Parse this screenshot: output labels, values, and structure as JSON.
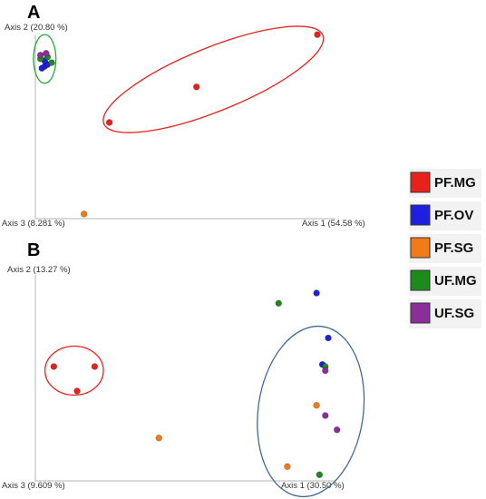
{
  "chart_data": [
    {
      "type": "scatter",
      "panel_label": "A",
      "x_axis_label": "Axis 1 (54.58 %)",
      "y_axis_label": "Axis 2 (20.80 %)",
      "z_axis_label": "Axis 3 (8.281 %)",
      "xlim": [
        0,
        1
      ],
      "ylim": [
        0,
        1
      ],
      "series": [
        {
          "group": "PF.MG",
          "points": [
            [
              1.0,
              0.98
            ],
            [
              0.57,
              0.7
            ],
            [
              0.26,
              0.51
            ]
          ]
        },
        {
          "group": "PF.OV",
          "points": [
            [
              0.02,
              0.8
            ],
            [
              0.03,
              0.81
            ],
            [
              0.04,
              0.82
            ],
            [
              0.03,
              0.84
            ]
          ]
        },
        {
          "group": "PF.SG",
          "points": [
            [
              0.17,
              0.02
            ]
          ]
        },
        {
          "group": "UF.MG",
          "points": [
            [
              0.04,
              0.86
            ],
            [
              0.055,
              0.83
            ],
            [
              0.015,
              0.85
            ]
          ]
        },
        {
          "group": "UF.SG",
          "points": [
            [
              0.015,
              0.87
            ],
            [
              0.035,
              0.88
            ]
          ]
        }
      ],
      "ellipses": [
        {
          "color_group": "UF.MG",
          "cx": 0.03,
          "cy": 0.85,
          "rx": 0.04,
          "ry": 0.13
        },
        {
          "color_group": "PF.MG",
          "cx": 0.63,
          "cy": 0.74,
          "rx": 0.42,
          "ry": 0.17,
          "angle": -22
        }
      ]
    },
    {
      "type": "scatter",
      "panel_label": "B",
      "x_axis_label": "Axis 1 (30.50 %)",
      "y_axis_label": "Axis 2 (13.27 %)",
      "z_axis_label": "Axis 3 (9.609 %)",
      "xlim": [
        0,
        1
      ],
      "ylim": [
        0,
        1
      ],
      "series": [
        {
          "group": "PF.MG",
          "points": [
            [
              0.06,
              0.56
            ],
            [
              0.2,
              0.56
            ],
            [
              0.14,
              0.44
            ]
          ]
        },
        {
          "group": "PF.OV",
          "points": [
            [
              0.96,
              0.92
            ],
            [
              1.0,
              0.7
            ],
            [
              0.98,
              0.57
            ]
          ]
        },
        {
          "group": "PF.SG",
          "points": [
            [
              0.42,
              0.21
            ],
            [
              0.96,
              0.37
            ],
            [
              0.86,
              0.07
            ]
          ]
        },
        {
          "group": "UF.MG",
          "points": [
            [
              0.83,
              0.87
            ],
            [
              0.99,
              0.56
            ],
            [
              0.97,
              0.03
            ]
          ]
        },
        {
          "group": "UF.SG",
          "points": [
            [
              0.99,
              0.54
            ],
            [
              0.99,
              0.32
            ],
            [
              1.03,
              0.25
            ]
          ]
        }
      ],
      "ellipses": [
        {
          "color_group": "PF.MG",
          "cx": 0.13,
          "cy": 0.54,
          "rx": 0.1,
          "ry": 0.12
        },
        {
          "color_group": "PF.OV",
          "cx": 0.94,
          "cy": 0.34,
          "rx": 0.18,
          "ry": 0.42,
          "angle": 8
        }
      ]
    }
  ],
  "legend": {
    "placement": "right",
    "items": [
      {
        "label": "PF.MG",
        "color": "#e8211c"
      },
      {
        "label": "PF.OV",
        "color": "#1f1fe0"
      },
      {
        "label": "PF.SG",
        "color": "#f07c19"
      },
      {
        "label": "UF.MG",
        "color": "#1e8a1e"
      },
      {
        "label": "UF.SG",
        "color": "#8a2f9a"
      }
    ]
  },
  "colors": {
    "PF.MG": "#e8211c",
    "PF.OV": "#1f1fe0",
    "PF.SG": "#f07c19",
    "UF.MG": "#1e8a1e",
    "UF.SG": "#8a2f9a",
    "ellipse_A_green": "#22aa33",
    "ellipse_B_blue": "#3e6a98"
  }
}
